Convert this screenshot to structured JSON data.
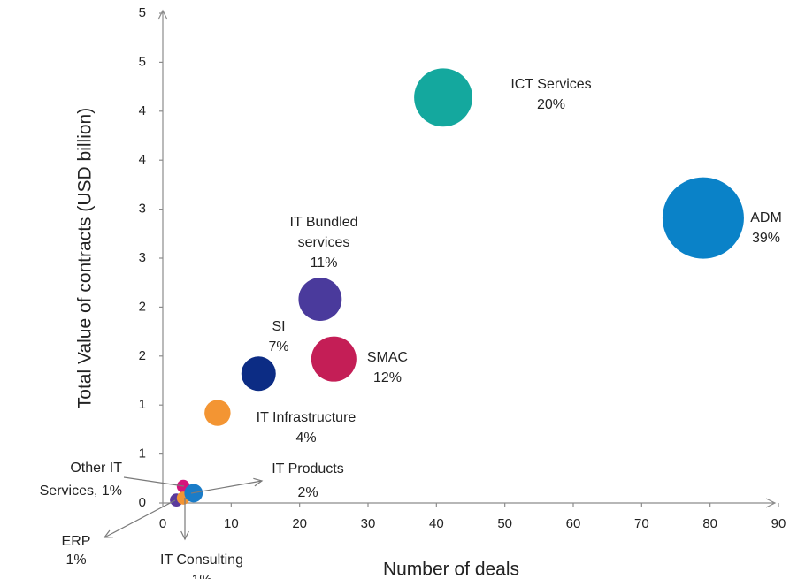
{
  "chart_data": {
    "type": "bubble",
    "x_label": "Number of deals",
    "y_label": "Total Value of contracts (USD billion)",
    "xlim": [
      0,
      90
    ],
    "xticks": [
      0,
      10,
      20,
      30,
      40,
      50,
      60,
      70,
      80,
      90
    ],
    "ylim": [
      0,
      5
    ],
    "yticks": [
      0,
      {
        "value": 0.5,
        "label": "1"
      },
      1,
      {
        "value": 1.5,
        "label": "2"
      },
      2,
      {
        "value": 2.5,
        "label": "3"
      },
      3,
      {
        "value": 3.5,
        "label": "4"
      },
      4,
      {
        "value": 4.5,
        "label": "5"
      },
      5
    ],
    "grid": false,
    "points": [
      {
        "name_lines": [
          "ADM"
        ],
        "x": 79,
        "y": 2.91,
        "size": 39,
        "value_label": "39%",
        "color": "#0a82c8"
      },
      {
        "name_lines": [
          "ICT Services"
        ],
        "x": 41,
        "y": 4.14,
        "size": 20,
        "value_label": "20%",
        "color": "#14a89e"
      },
      {
        "name_lines": [
          "SMAC"
        ],
        "x": 25,
        "y": 1.47,
        "size": 12,
        "value_label": "12%",
        "color": "#c41e56"
      },
      {
        "name_lines": [
          "IT Bundled",
          "services"
        ],
        "x": 23,
        "y": 2.08,
        "size": 11,
        "value_label": "11%",
        "color": "#4a3a9c"
      },
      {
        "name_lines": [
          "SI"
        ],
        "x": 14,
        "y": 1.32,
        "size": 7,
        "value_label": "7%",
        "color": "#0c2c84"
      },
      {
        "name_lines": [
          "IT Infrastructure"
        ],
        "x": 8,
        "y": 0.92,
        "size": 4,
        "value_label": "4%",
        "color": "#f39533"
      },
      {
        "name_lines": [
          "Other IT",
          "Services,"
        ],
        "x": 3,
        "y": 0.17,
        "size": 1,
        "value_label": "1%",
        "color": "#d4147c"
      },
      {
        "name_lines": [
          "ERP"
        ],
        "x": 2,
        "y": 0.03,
        "size": 1,
        "value_label": "1%",
        "color": "#5a3a9c"
      },
      {
        "name_lines": [
          "IT Consulting"
        ],
        "x": 3,
        "y": 0.05,
        "size": 1,
        "value_label": "1%",
        "color": "#f39533"
      },
      {
        "name_lines": [
          "IT Products"
        ],
        "x": 4.5,
        "y": 0.1,
        "size": 2,
        "value_label": "2%",
        "color": "#1a7cc8"
      }
    ]
  }
}
